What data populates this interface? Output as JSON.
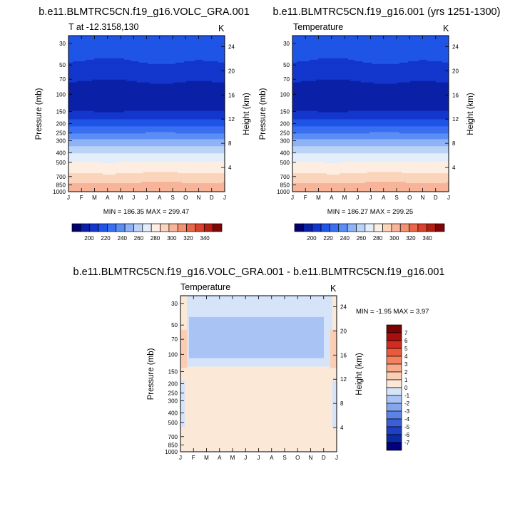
{
  "chart_data": [
    {
      "type": "heatmap",
      "title": "b.e11.BLMTRC5CN.f19_g16.VOLC_GRA.001",
      "subtitle_left": "T at -12.3158,130",
      "units": "K",
      "ylabel": "Pressure (mb)",
      "ylabel_right": "Height (km)",
      "x_tick_labels": [
        "J",
        "F",
        "M",
        "A",
        "M",
        "J",
        "J",
        "A",
        "S",
        "O",
        "N",
        "D",
        "J"
      ],
      "y_ticks": [
        30,
        50,
        70,
        100,
        150,
        200,
        250,
        300,
        400,
        500,
        700,
        850,
        1000
      ],
      "y_tick_labels": [
        "30",
        "50",
        "70",
        "100",
        "150",
        "200",
        "250",
        "300",
        "400",
        "500",
        "700",
        "850",
        "1000"
      ],
      "ylim": [
        1000,
        25
      ],
      "height_ticks": [
        24,
        20,
        16,
        12,
        8,
        4
      ],
      "height_tick_labels": [
        "24",
        "20",
        "16",
        "12",
        "8",
        "4"
      ],
      "stats": "MIN = 186.35 MAX = 299.47",
      "min": 186.35,
      "max": 299.47,
      "levels": [
        190,
        200,
        210,
        220,
        230,
        240,
        250,
        260,
        270,
        280,
        290,
        300,
        310,
        320,
        330,
        340,
        350
      ],
      "colorbar_labels": [
        "200",
        "220",
        "240",
        "260",
        "280",
        "300",
        "320",
        "340"
      ],
      "colorbar_values": [
        200,
        220,
        240,
        260,
        280,
        300,
        320,
        340
      ],
      "colors": [
        "#02016e",
        "#0a20a6",
        "#1336cd",
        "#1f55e6",
        "#3a6ff2",
        "#5b8ef5",
        "#8eb2f6",
        "#bcd3f8",
        "#e4eefb",
        "#fdeee1",
        "#fbd4bc",
        "#f8b499",
        "#f39173",
        "#ea6648",
        "#d9412c",
        "#b31e13",
        "#7e0608"
      ],
      "profile": [
        {
          "p": 25,
          "t": 213
        },
        {
          "p": 30,
          "t": 214
        },
        {
          "p": 40,
          "t": 212
        },
        {
          "p": 50,
          "t": 208
        },
        {
          "p": 70,
          "t": 201
        },
        {
          "p": 100,
          "t": 192
        },
        {
          "p": 150,
          "t": 200
        },
        {
          "p": 200,
          "t": 216
        },
        {
          "p": 250,
          "t": 230
        },
        {
          "p": 300,
          "t": 242
        },
        {
          "p": 400,
          "t": 259
        },
        {
          "p": 500,
          "t": 270
        },
        {
          "p": 700,
          "t": 283
        },
        {
          "p": 850,
          "t": 292
        },
        {
          "p": 1000,
          "t": 299
        }
      ],
      "month_shift": [
        0.5,
        0.2,
        -0.3,
        -0.6,
        -0.4,
        0.2,
        0.7,
        1.0,
        0.8,
        0.3,
        -0.1,
        0.3,
        0.5
      ]
    },
    {
      "type": "heatmap",
      "title": "b.e11.BLMTRC5CN.f19_g16.001 (yrs 1251-1300)",
      "subtitle_left": "Temperature",
      "units": "K",
      "ylabel": "Pressure (mb)",
      "ylabel_right": "Height (km)",
      "x_tick_labels": [
        "J",
        "F",
        "M",
        "A",
        "M",
        "J",
        "J",
        "A",
        "S",
        "O",
        "N",
        "D",
        "J"
      ],
      "y_ticks": [
        30,
        50,
        70,
        100,
        150,
        200,
        250,
        300,
        400,
        500,
        700,
        850,
        1000
      ],
      "y_tick_labels": [
        "30",
        "50",
        "70",
        "100",
        "150",
        "200",
        "250",
        "300",
        "400",
        "500",
        "700",
        "850",
        "1000"
      ],
      "ylim": [
        1000,
        25
      ],
      "height_ticks": [
        24,
        20,
        16,
        12,
        8,
        4
      ],
      "height_tick_labels": [
        "24",
        "20",
        "16",
        "12",
        "8",
        "4"
      ],
      "stats": "MIN = 186.27 MAX = 299.25",
      "min": 186.27,
      "max": 299.25,
      "levels": [
        190,
        200,
        210,
        220,
        230,
        240,
        250,
        260,
        270,
        280,
        290,
        300,
        310,
        320,
        330,
        340,
        350
      ],
      "colorbar_labels": [
        "200",
        "220",
        "240",
        "260",
        "280",
        "300",
        "320",
        "340"
      ],
      "colorbar_values": [
        200,
        220,
        240,
        260,
        280,
        300,
        320,
        340
      ],
      "colors": [
        "#02016e",
        "#0a20a6",
        "#1336cd",
        "#1f55e6",
        "#3a6ff2",
        "#5b8ef5",
        "#8eb2f6",
        "#bcd3f8",
        "#e4eefb",
        "#fdeee1",
        "#fbd4bc",
        "#f8b499",
        "#f39173",
        "#ea6648",
        "#d9412c",
        "#b31e13",
        "#7e0608"
      ],
      "profile": [
        {
          "p": 25,
          "t": 213
        },
        {
          "p": 30,
          "t": 214
        },
        {
          "p": 40,
          "t": 212
        },
        {
          "p": 50,
          "t": 208
        },
        {
          "p": 70,
          "t": 201
        },
        {
          "p": 100,
          "t": 192
        },
        {
          "p": 150,
          "t": 200
        },
        {
          "p": 200,
          "t": 216
        },
        {
          "p": 250,
          "t": 230
        },
        {
          "p": 300,
          "t": 242
        },
        {
          "p": 400,
          "t": 259
        },
        {
          "p": 500,
          "t": 270
        },
        {
          "p": 700,
          "t": 283
        },
        {
          "p": 850,
          "t": 292
        },
        {
          "p": 1000,
          "t": 299
        }
      ],
      "month_shift": [
        0.5,
        0.2,
        -0.3,
        -0.6,
        -0.4,
        0.2,
        0.7,
        1.0,
        0.8,
        0.3,
        -0.1,
        0.3,
        0.5
      ]
    },
    {
      "type": "heatmap",
      "title": "b.e11.BLMTRC5CN.f19_g16.VOLC_GRA.001 - b.e11.BLMTRC5CN.f19_g16.001",
      "subtitle_left": "Temperature",
      "units": "K",
      "ylabel": "Pressure (mb)",
      "ylabel_right": "Height (km)",
      "x_tick_labels": [
        "J",
        "F",
        "M",
        "A",
        "M",
        "J",
        "J",
        "A",
        "S",
        "O",
        "N",
        "D",
        "J"
      ],
      "y_ticks": [
        30,
        50,
        70,
        100,
        150,
        200,
        250,
        300,
        400,
        500,
        700,
        850,
        1000
      ],
      "y_tick_labels": [
        "30",
        "50",
        "70",
        "100",
        "150",
        "200",
        "250",
        "300",
        "400",
        "500",
        "700",
        "850",
        "1000"
      ],
      "ylim": [
        1000,
        25
      ],
      "height_ticks": [
        24,
        20,
        16,
        12,
        8,
        4
      ],
      "height_tick_labels": [
        "24",
        "20",
        "16",
        "12",
        "8",
        "4"
      ],
      "stats": "MIN =  -1.95 MAX =   3.97",
      "min": -1.95,
      "max": 3.97,
      "levels": [
        -7,
        -6,
        -5,
        -4,
        -3,
        -2,
        -1,
        0,
        1,
        2,
        3,
        4,
        5,
        6,
        7
      ],
      "colorbar_labels": [
        "7",
        "6",
        "5",
        "4",
        "3",
        "2",
        "1",
        "0",
        "-1",
        "-2",
        "-3",
        "-4",
        "-5",
        "-6",
        "-7"
      ],
      "colors": [
        "#000080",
        "#0a2aa6",
        "#1f3fc4",
        "#3a5fd8",
        "#5b82e6",
        "#83a6ef",
        "#a9c3f4",
        "#d6e4fa",
        "#fce8d6",
        "#fbcdb2",
        "#f9aa8a",
        "#f4825f",
        "#ea5a3a",
        "#d52a1f",
        "#a70f0c",
        "#7a0403"
      ],
      "regions": [
        {
          "name": "base",
          "value": 0.5
        },
        {
          "name": "stratosphere-cooling",
          "value": -0.3,
          "months": [
            0.5,
            11.6
          ],
          "p": [
            25,
            135
          ]
        },
        {
          "name": "stratosphere-core",
          "value": -1.5,
          "months": [
            0.6,
            11.0
          ],
          "p": [
            42,
            108
          ]
        },
        {
          "name": "edge-warming-left",
          "value": 1.5,
          "months": [
            0,
            0.5
          ],
          "p": [
            55,
            140
          ]
        },
        {
          "name": "edge-warming-right",
          "value": 1.5,
          "months": [
            11.5,
            12
          ],
          "p": [
            55,
            140
          ]
        },
        {
          "name": "lower-trop-cooling-left",
          "value": -0.5,
          "months": [
            0,
            0.4
          ],
          "p": [
            190,
            560
          ]
        },
        {
          "name": "lower-trop-cooling-right",
          "value": -0.5,
          "months": [
            11.6,
            12
          ],
          "p": [
            190,
            560
          ]
        }
      ]
    }
  ]
}
